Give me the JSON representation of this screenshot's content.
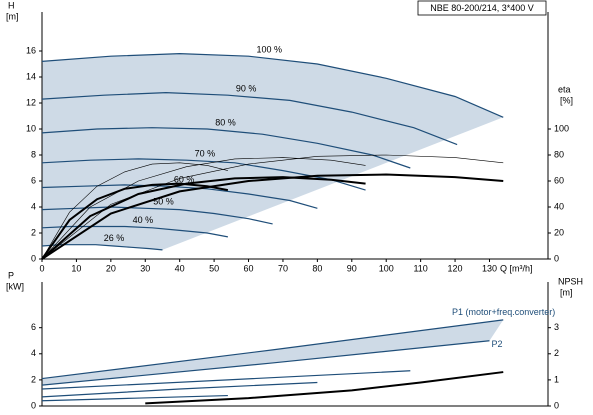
{
  "chart_data": [
    {
      "type": "line",
      "title": "NBE 80-200/214, 3*400 V",
      "ylabel": "H",
      "yunit": "[m]",
      "y2label": "eta",
      "y2unit": "[%]",
      "xlabel": "Q [m³/h]",
      "xlim": [
        0,
        147
      ],
      "xticks": [
        0,
        10,
        20,
        30,
        40,
        50,
        60,
        70,
        80,
        90,
        100,
        110,
        120,
        130
      ],
      "ylim": [
        0,
        19
      ],
      "yticks": [
        0,
        2,
        4,
        6,
        8,
        10,
        12,
        14,
        16
      ],
      "y2lim": [
        0,
        190
      ],
      "y2ticks": [
        0,
        20,
        40,
        60,
        80,
        100
      ],
      "region_color": "#c5d3e2",
      "series": [
        {
          "name": "100 %",
          "color": "#1f4e79",
          "line_width": 1.2,
          "x": [
            0,
            20,
            40,
            60,
            80,
            100,
            120,
            134
          ],
          "values": [
            15.2,
            15.6,
            15.8,
            15.6,
            15.0,
            13.9,
            12.5,
            10.9
          ]
        },
        {
          "name": "90 %",
          "color": "#1f4e79",
          "line_width": 1.2,
          "x": [
            0,
            18,
            36,
            54,
            72,
            90,
            108,
            120.6
          ],
          "values": [
            12.3,
            12.6,
            12.8,
            12.6,
            12.2,
            11.3,
            10.1,
            8.8
          ]
        },
        {
          "name": "80 %",
          "color": "#1f4e79",
          "line_width": 1.2,
          "x": [
            0,
            16,
            32,
            48,
            64,
            80,
            96,
            107
          ],
          "values": [
            9.7,
            10.0,
            10.1,
            10.0,
            9.6,
            8.9,
            8.0,
            7.0
          ]
        },
        {
          "name": "70 %",
          "color": "#1f4e79",
          "line_width": 1.2,
          "x": [
            0,
            14,
            28,
            42,
            56,
            70,
            84,
            94
          ],
          "values": [
            7.4,
            7.6,
            7.7,
            7.6,
            7.4,
            6.8,
            6.1,
            5.3
          ]
        },
        {
          "name": "60 %",
          "color": "#1f4e79",
          "line_width": 1.2,
          "x": [
            0,
            12,
            24,
            36,
            48,
            60,
            72,
            80
          ],
          "values": [
            5.5,
            5.6,
            5.7,
            5.6,
            5.4,
            5.0,
            4.5,
            3.9
          ]
        },
        {
          "name": "50 %",
          "color": "#1f4e79",
          "line_width": 1.2,
          "x": [
            0,
            10,
            20,
            30,
            40,
            50,
            60,
            67
          ],
          "values": [
            3.8,
            3.9,
            4.0,
            3.9,
            3.8,
            3.5,
            3.1,
            2.7
          ]
        },
        {
          "name": "40 %",
          "color": "#1f4e79",
          "line_width": 1.2,
          "x": [
            0,
            8,
            16,
            24,
            32,
            40,
            48,
            54
          ],
          "values": [
            2.4,
            2.5,
            2.5,
            2.5,
            2.4,
            2.2,
            2.0,
            1.7
          ]
        },
        {
          "name": "26 %",
          "color": "#1f4e79",
          "line_width": 1.2,
          "x": [
            0,
            5.2,
            10.4,
            15.6,
            20.8,
            26,
            31.2,
            35
          ],
          "values": [
            1.0,
            1.1,
            1.1,
            1.1,
            1.0,
            0.9,
            0.8,
            0.7
          ]
        },
        {
          "axis": "y2",
          "color": "#000000",
          "line_width": 2,
          "x": [
            0,
            20,
            40,
            60,
            80,
            100,
            120,
            134
          ],
          "values": [
            0,
            35,
            52,
            60,
            64,
            65,
            63,
            60
          ]
        },
        {
          "axis": "y2",
          "color": "#000000",
          "line_width": 2,
          "x": [
            0,
            14,
            28,
            42,
            56,
            70,
            84,
            94
          ],
          "values": [
            0,
            33,
            50,
            58,
            62,
            63,
            61,
            58
          ]
        },
        {
          "axis": "y2",
          "color": "#000000",
          "line_width": 2,
          "x": [
            0,
            8,
            16,
            24,
            32,
            40,
            48,
            54
          ],
          "values": [
            0,
            30,
            46,
            54,
            57,
            58,
            56,
            53
          ]
        },
        {
          "axis": "y2",
          "color": "#000000",
          "line_width": 0.6,
          "x": [
            0,
            20,
            40,
            60,
            80,
            100,
            120,
            134
          ],
          "values": [
            0,
            42,
            62,
            73,
            79,
            80,
            78,
            74
          ]
        },
        {
          "axis": "y2",
          "color": "#000000",
          "line_width": 0.6,
          "x": [
            0,
            14,
            28,
            42,
            56,
            70,
            84,
            94
          ],
          "values": [
            0,
            40,
            60,
            71,
            77,
            78,
            76,
            72
          ]
        },
        {
          "axis": "y2",
          "color": "#000000",
          "line_width": 0.6,
          "x": [
            0,
            8,
            16,
            24,
            32,
            40,
            48,
            54
          ],
          "values": [
            0,
            36,
            56,
            67,
            73,
            74,
            72,
            68
          ]
        }
      ]
    },
    {
      "type": "line",
      "ylabel": "P",
      "yunit": "[kW]",
      "y2label": "NPSH",
      "y2unit": "[m]",
      "xlim": [
        0,
        147
      ],
      "ylim": [
        0,
        9.5
      ],
      "yticks": [
        0,
        2,
        4,
        6
      ],
      "y2lim": [
        0,
        4.75
      ],
      "y2ticks": [
        0,
        1,
        2,
        3
      ],
      "region_color": "#c5d3e2",
      "series": [
        {
          "name": "P1 (motor+freq.converter)",
          "color": "#1f4e79",
          "line_width": 1.2,
          "x": [
            0,
            67,
            134
          ],
          "values": [
            2.1,
            4.3,
            6.6
          ]
        },
        {
          "color": "#1f4e79",
          "line_width": 1.2,
          "x": [
            0,
            54,
            107
          ],
          "values": [
            1.3,
            2.0,
            2.7
          ]
        },
        {
          "color": "#1f4e79",
          "line_width": 1.2,
          "x": [
            0,
            40,
            80
          ],
          "values": [
            0.7,
            1.3,
            1.8
          ]
        },
        {
          "color": "#1f4e79",
          "line_width": 1.2,
          "x": [
            0,
            27,
            54
          ],
          "values": [
            0.4,
            0.6,
            0.8
          ]
        },
        {
          "name": "P2",
          "color": "#1f4e79",
          "line_width": 1.2,
          "x": [
            0,
            67,
            130
          ],
          "values": [
            1.6,
            3.3,
            5.0
          ]
        },
        {
          "axis": "y2",
          "color": "#000000",
          "line_width": 2,
          "x": [
            30,
            60,
            90,
            110,
            134
          ],
          "values": [
            0.1,
            0.3,
            0.6,
            0.9,
            1.3
          ]
        }
      ]
    }
  ]
}
